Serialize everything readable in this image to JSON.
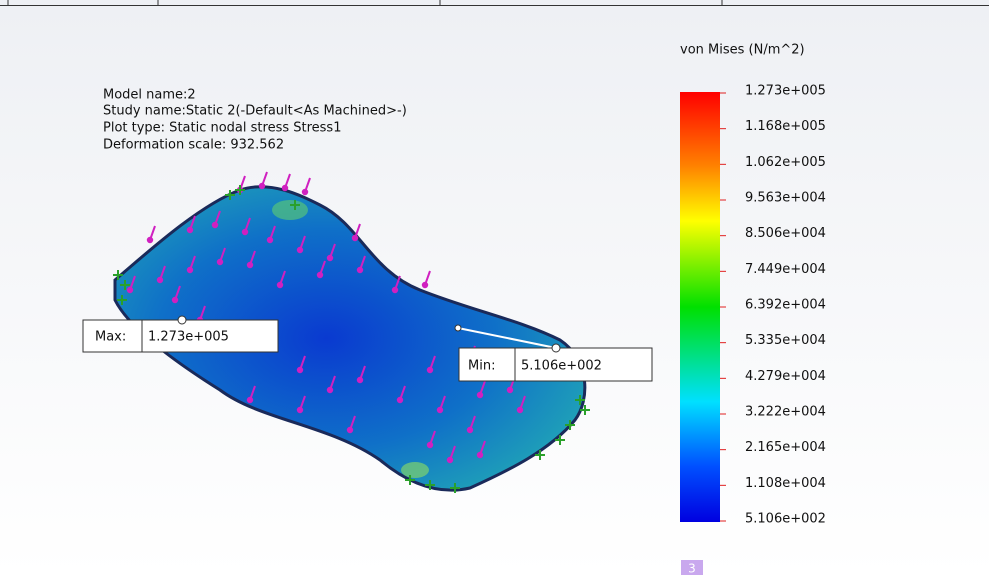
{
  "info": {
    "model_name": "Model name:2",
    "study_name": "Study name:Static 2(-Default<As Machined>-)",
    "plot_type": "Plot type: Static nodal stress Stress1",
    "deformation_scale": "Deformation scale: 932.562"
  },
  "legend": {
    "title": "von Mises (N/m^2)",
    "labels": [
      "1.273e+005",
      "1.168e+005",
      "1.062e+005",
      "9.563e+004",
      "8.506e+004",
      "7.449e+004",
      "6.392e+004",
      "5.335e+004",
      "4.279e+004",
      "3.222e+004",
      "2.165e+004",
      "1.108e+004",
      "5.106e+002"
    ]
  },
  "max": {
    "label": "Max:",
    "value": "1.273e+005"
  },
  "min": {
    "label": "Min:",
    "value": "5.106e+002"
  },
  "badge": "3"
}
